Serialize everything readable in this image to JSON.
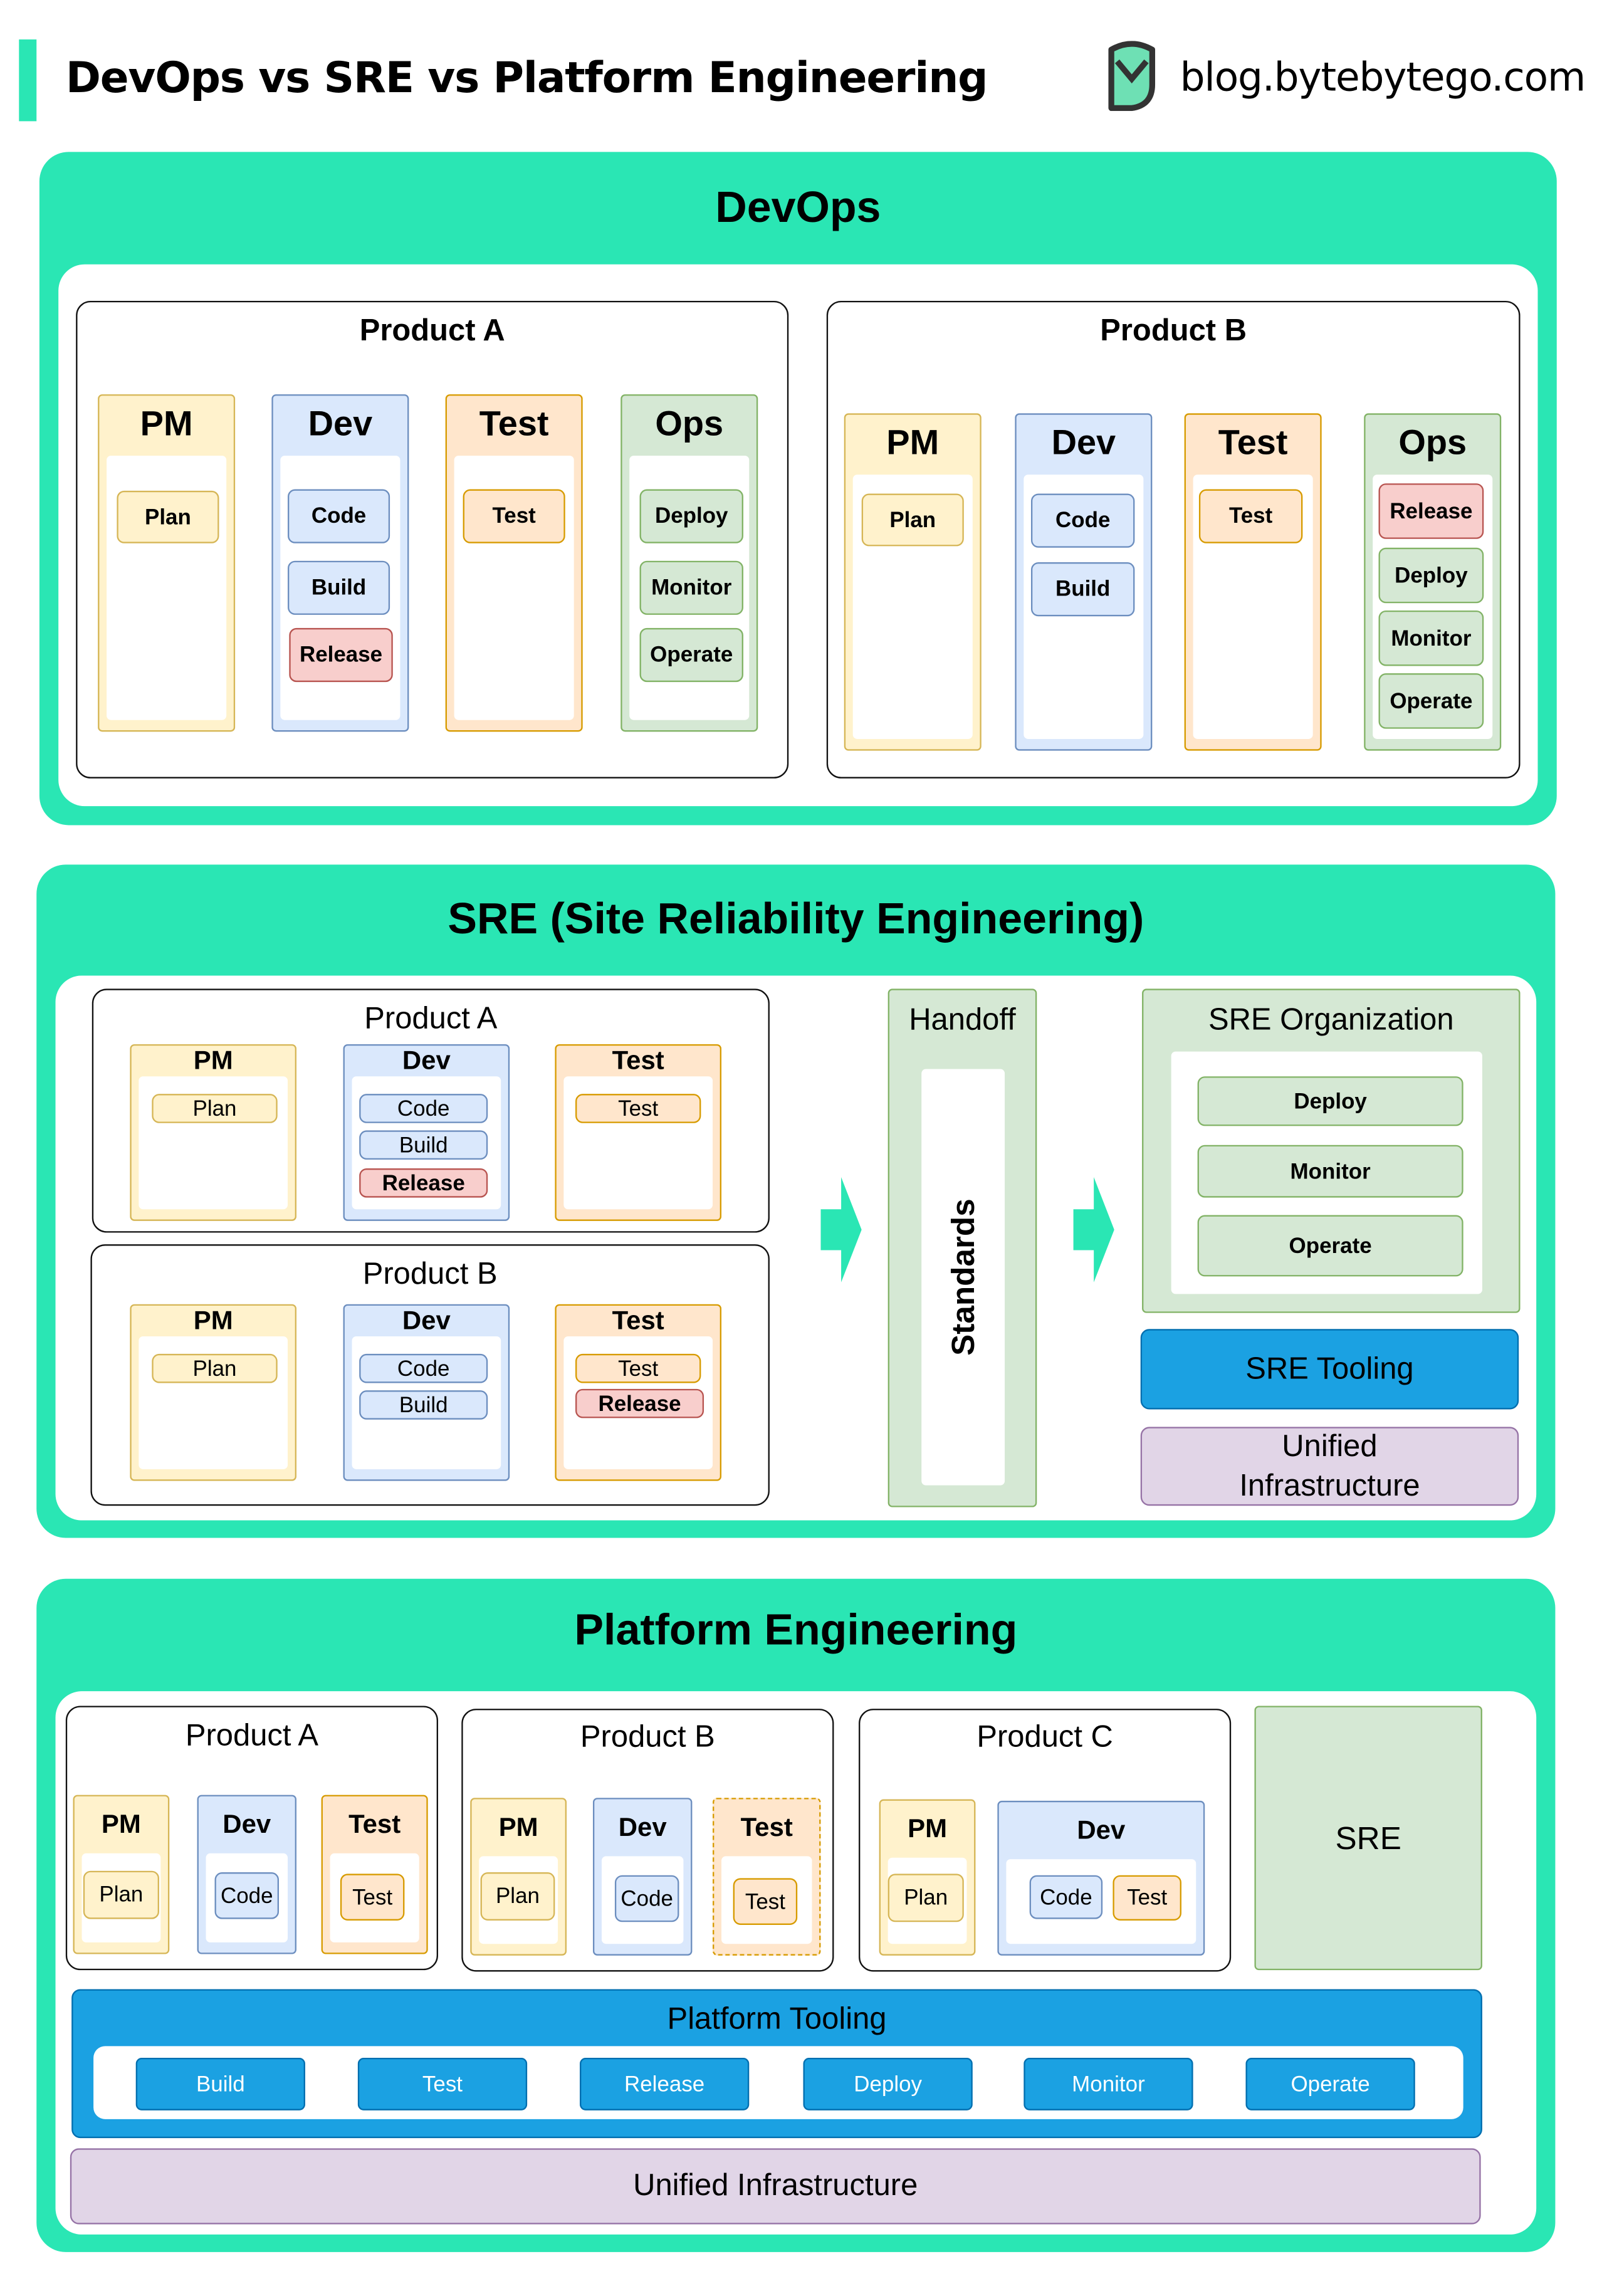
{
  "header": {
    "title": "DevOps vs SRE vs Platform Engineering",
    "site": "blog.bytebytego.com",
    "logo_icon": "bytebytego-logo-icon",
    "accent": "#2ae6b4"
  },
  "colors": {
    "section": "#2ae6b4",
    "pm": "#fff2cc",
    "dev": "#dae8fc",
    "test": "#ffe6cc",
    "ops": "#d5e8d4",
    "release": "#f8cecc",
    "tooling": "#1ba1e2",
    "infrastructure": "#e1d5e7"
  },
  "devops": {
    "title": "DevOps",
    "products": [
      {
        "name": "Product A",
        "columns": [
          {
            "label": "PM",
            "items": [
              {
                "label": "Plan",
                "tone": "yellow"
              }
            ]
          },
          {
            "label": "Dev",
            "items": [
              {
                "label": "Code",
                "tone": "blue"
              },
              {
                "label": "Build",
                "tone": "blue"
              },
              {
                "label": "Release",
                "tone": "red"
              }
            ]
          },
          {
            "label": "Test",
            "items": [
              {
                "label": "Test",
                "tone": "orange"
              }
            ]
          },
          {
            "label": "Ops",
            "items": [
              {
                "label": "Deploy",
                "tone": "green"
              },
              {
                "label": "Monitor",
                "tone": "green"
              },
              {
                "label": "Operate",
                "tone": "green"
              }
            ]
          }
        ]
      },
      {
        "name": "Product B",
        "columns": [
          {
            "label": "PM",
            "items": [
              {
                "label": "Plan",
                "tone": "yellow"
              }
            ]
          },
          {
            "label": "Dev",
            "items": [
              {
                "label": "Code",
                "tone": "blue"
              },
              {
                "label": "Build",
                "tone": "blue"
              }
            ]
          },
          {
            "label": "Test",
            "items": [
              {
                "label": "Test",
                "tone": "orange"
              }
            ]
          },
          {
            "label": "Ops",
            "items": [
              {
                "label": "Release",
                "tone": "red"
              },
              {
                "label": "Deploy",
                "tone": "green"
              },
              {
                "label": "Monitor",
                "tone": "green"
              },
              {
                "label": "Operate",
                "tone": "green"
              }
            ]
          }
        ]
      }
    ]
  },
  "sre": {
    "title": "SRE (Site Reliability Engineering)",
    "products": [
      {
        "name": "Product A",
        "columns": [
          {
            "label": "PM",
            "items": [
              {
                "label": "Plan",
                "tone": "yellow"
              }
            ]
          },
          {
            "label": "Dev",
            "items": [
              {
                "label": "Code",
                "tone": "blue"
              },
              {
                "label": "Build",
                "tone": "blue"
              },
              {
                "label": "Release",
                "tone": "red"
              }
            ]
          },
          {
            "label": "Test",
            "items": [
              {
                "label": "Test",
                "tone": "orange"
              }
            ]
          }
        ]
      },
      {
        "name": "Product B",
        "columns": [
          {
            "label": "PM",
            "items": [
              {
                "label": "Plan",
                "tone": "yellow"
              }
            ]
          },
          {
            "label": "Dev",
            "items": [
              {
                "label": "Code",
                "tone": "blue"
              },
              {
                "label": "Build",
                "tone": "blue"
              }
            ]
          },
          {
            "label": "Test",
            "items": [
              {
                "label": "Test",
                "tone": "orange"
              },
              {
                "label": "Release",
                "tone": "red"
              }
            ]
          }
        ]
      }
    ],
    "handoff": {
      "title": "Handoff",
      "standards": "Standards"
    },
    "organization": {
      "title": "SRE Organization",
      "items": [
        "Deploy",
        "Monitor",
        "Operate"
      ]
    },
    "tooling": "SRE Tooling",
    "infrastructure": "Unified Infrastructure"
  },
  "platform": {
    "title": "Platform Engineering",
    "products": [
      {
        "name": "Product A",
        "columns": [
          {
            "label": "PM",
            "items": [
              {
                "label": "Plan",
                "tone": "yellow"
              }
            ]
          },
          {
            "label": "Dev",
            "items": [
              {
                "label": "Code",
                "tone": "blue"
              }
            ]
          },
          {
            "label": "Test",
            "items": [
              {
                "label": "Test",
                "tone": "orange"
              }
            ]
          }
        ]
      },
      {
        "name": "Product B",
        "columns": [
          {
            "label": "PM",
            "items": [
              {
                "label": "Plan",
                "tone": "yellow"
              }
            ]
          },
          {
            "label": "Dev",
            "items": [
              {
                "label": "Code",
                "tone": "blue"
              }
            ]
          },
          {
            "label": "Test",
            "items": [
              {
                "label": "Test",
                "tone": "orange"
              }
            ]
          }
        ]
      },
      {
        "name": "Product C",
        "columns": [
          {
            "label": "PM",
            "items": [
              {
                "label": "Plan",
                "tone": "yellow"
              }
            ]
          },
          {
            "label": "Dev",
            "items": [
              {
                "label": "Code",
                "tone": "blue"
              },
              {
                "label": "Test",
                "tone": "orange"
              }
            ]
          }
        ]
      }
    ],
    "sre": "SRE",
    "tooling": {
      "title": "Platform Tooling",
      "items": [
        "Build",
        "Test",
        "Release",
        "Deploy",
        "Monitor",
        "Operate"
      ]
    },
    "infrastructure": "Unified Infrastructure"
  }
}
